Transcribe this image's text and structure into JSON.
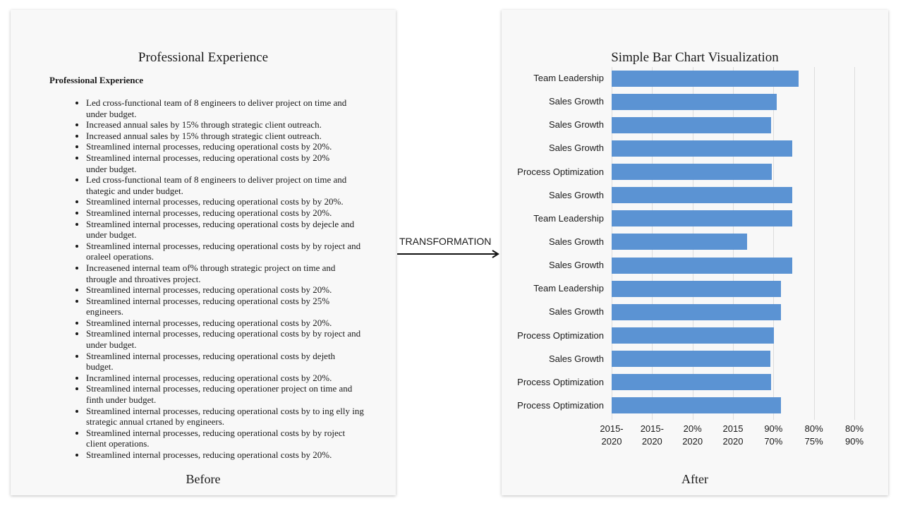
{
  "before": {
    "title": "Professional Experience",
    "heading": "Professional Experience",
    "bullets": [
      "Led cross-functional team of 8 engineers to deliver project on time and\nunder budget.",
      "Increased annual sales by 15% through strategic client outreach.",
      "Increased annual sales by 15% through strategic client outreach.",
      "Streamlined internal processes, reducing operational costs by 20%.",
      "Streamlined internal processes, reducing operational costs by 20%\nunder budget.",
      "Led cross-functional team of 8 engineers to deliver project on time and\nthategic and under budget.",
      "Streamlined internal processes, reducing operational costs by by 20%.",
      "Streamlined internal processes, reducing operational costs by 20%.",
      "Streamlined internal processes, reducing operational costs by dejecle and\nunder budget.",
      "Streamlined internal processes, reducing operational costs by by roject and\noraleel operations.",
      "Increasened internal team of% through strategic project on time and\nthrougle and throatives project.",
      "Streamlined internal processes, reducing operational costs by 20%.",
      "Streamlined internal processes, reducing operational costs by 25%\nengineers.",
      "Streamlined internal processes, reducing operational costs by 20%.",
      "Streamlined internal processes, reducing operational costs by by roject and\nunder budget.",
      "Streamlined internal processes, reducing operational costs by dejeth\nbudget.",
      "Incramlined internal processes, reducing operational costs by 20%.",
      "Streamlined internal processes, reducing operationer project on time and\nfinth under budget.",
      "Streamlined internal processes, reducing operational costs by to ing elly ing\nstrategic annual crtaned by engineers.",
      "Streamlined internal processes, reducing operational costs by by roject\nclient operations.",
      "Streamlined internal processes, reducing operational costs by 20%."
    ],
    "caption": "Before"
  },
  "transformation_label": "TRANSFORMATION",
  "chart_data": {
    "type": "bar",
    "title": "Simple Bar Chart Visualization",
    "categories": [
      "Team Leadership",
      "Sales Growth",
      "Sales Growth",
      "Sales Growth",
      "Process Optimization",
      "Sales Growth",
      "Team Leadership",
      "Sales Growth",
      "Sales Growth",
      "Team Leadership",
      "Sales Growth",
      "Process Optimization",
      "Sales Growth",
      "Process Optimization",
      "Process Optimization"
    ],
    "values": [
      4.62,
      4.08,
      3.94,
      4.47,
      3.96,
      4.47,
      4.47,
      3.35,
      4.47,
      4.19,
      4.19,
      4.01,
      3.92,
      3.94,
      4.19
    ],
    "color": "#5b93d3",
    "xlim": [
      0,
      6
    ],
    "xticks": [
      {
        "value": 0,
        "label": "2015-\n2020"
      },
      {
        "value": 1,
        "label": "2015-\n2020"
      },
      {
        "value": 2,
        "label": "20%\n2020"
      },
      {
        "value": 3,
        "label": "2015\n2020"
      },
      {
        "value": 4,
        "label": "90%\n70%"
      },
      {
        "value": 5,
        "label": "80%\n75%"
      },
      {
        "value": 6,
        "label": "80%\n90%"
      }
    ],
    "grid": true
  },
  "after": {
    "caption": "After"
  }
}
